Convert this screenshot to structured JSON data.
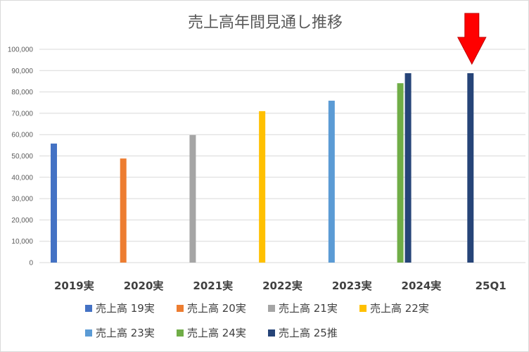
{
  "chart_data": {
    "type": "bar",
    "title": "売上高年間見通し推移",
    "categories": [
      "2019実",
      "2020実",
      "2021実",
      "2022実",
      "2023実",
      "2024実",
      "25Q1"
    ],
    "y_ticks": [
      "0",
      "10,000",
      "20,000",
      "30,000",
      "40,000",
      "50,000",
      "60,000",
      "70,000",
      "80,000",
      "90,000",
      "100,000"
    ],
    "ylim": [
      0,
      100000
    ],
    "grid": true,
    "legend_position": "bottom",
    "series": [
      {
        "name": "売上高 19実",
        "color": "#4472C4",
        "values": [
          55800,
          null,
          null,
          null,
          null,
          null,
          null
        ]
      },
      {
        "name": "売上高 20実",
        "color": "#ED7D31",
        "values": [
          null,
          48800,
          null,
          null,
          null,
          null,
          null
        ]
      },
      {
        "name": "売上高 21実",
        "color": "#A5A5A5",
        "values": [
          null,
          null,
          59800,
          null,
          null,
          null,
          null
        ]
      },
      {
        "name": "売上高 22実",
        "color": "#FFC000",
        "values": [
          null,
          null,
          null,
          71000,
          null,
          null,
          null
        ]
      },
      {
        "name": "売上高 23実",
        "color": "#5B9BD5",
        "values": [
          null,
          null,
          null,
          null,
          75900,
          null,
          null
        ]
      },
      {
        "name": "売上高 24実",
        "color": "#70AD47",
        "values": [
          null,
          null,
          null,
          null,
          null,
          84100,
          null
        ]
      },
      {
        "name": "売上高 25推",
        "color": "#264478",
        "values": [
          null,
          null,
          null,
          null,
          null,
          88800,
          88800
        ]
      }
    ],
    "annotation": {
      "shape": "down-arrow",
      "color": "#FF0000",
      "target_category": "25Q1"
    }
  }
}
